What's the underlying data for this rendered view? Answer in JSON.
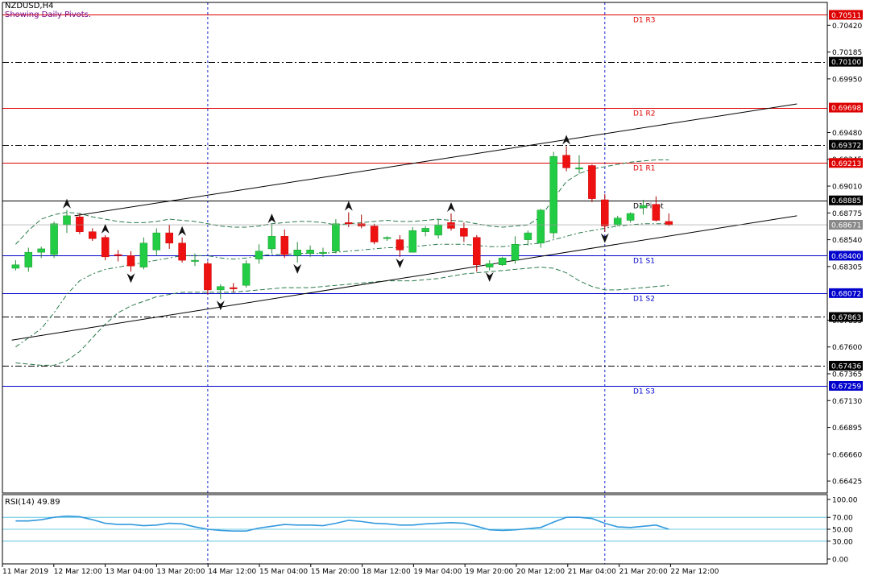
{
  "header": {
    "title": "NZDUSD,H4",
    "subtitle": "Showing Daily Pivots."
  },
  "rsi": {
    "label": "RSI(14) 49.89",
    "value": 49.89,
    "levels": [
      70,
      50,
      30
    ],
    "axis_ticks": [
      "100.00",
      "70.00",
      "50.00",
      "30.00",
      "0.00"
    ]
  },
  "colors": {
    "bull": "#22cc44",
    "bear": "#ee1111",
    "resistance": "#dd0000",
    "support": "#0000cc",
    "pivot": "#000000",
    "dashed_ma": "#2a7a4a",
    "rsi_line": "#3399dd",
    "rsi_level": "#44bbdd"
  },
  "chart_data": {
    "type": "candlestick",
    "symbol": "NZDUSD",
    "timeframe": "H4",
    "ylim": [
      0.6632,
      0.7062
    ],
    "y_ticks": [
      "0.70420",
      "0.70185",
      "0.69950",
      "0.69480",
      "0.69245",
      "0.69010",
      "0.68775",
      "0.68540",
      "0.68305",
      "0.67835",
      "0.67600",
      "0.67365",
      "0.67130",
      "0.66895",
      "0.66660",
      "0.66425"
    ],
    "x_ticks": [
      "11 Mar 2019",
      "12 Mar 12:00",
      "13 Mar 04:00",
      "13 Mar 20:00",
      "14 Mar 12:00",
      "15 Mar 04:00",
      "15 Mar 20:00",
      "18 Mar 12:00",
      "19 Mar 04:00",
      "19 Mar 20:00",
      "20 Mar 12:00",
      "21 Mar 04:00",
      "21 Mar 20:00",
      "22 Mar 12:00"
    ],
    "candles": [
      {
        "o": 0.6829,
        "h": 0.6836,
        "l": 0.6827,
        "c": 0.6832
      },
      {
        "o": 0.683,
        "h": 0.6847,
        "l": 0.6826,
        "c": 0.6843
      },
      {
        "o": 0.6843,
        "h": 0.6848,
        "l": 0.6838,
        "c": 0.6846
      },
      {
        "o": 0.6841,
        "h": 0.687,
        "l": 0.6838,
        "c": 0.6868
      },
      {
        "o": 0.6867,
        "h": 0.688,
        "l": 0.686,
        "c": 0.6875
      },
      {
        "o": 0.6874,
        "h": 0.6877,
        "l": 0.6859,
        "c": 0.6861
      },
      {
        "o": 0.6861,
        "h": 0.6864,
        "l": 0.6853,
        "c": 0.6855
      },
      {
        "o": 0.6856,
        "h": 0.6858,
        "l": 0.6836,
        "c": 0.6839
      },
      {
        "o": 0.6841,
        "h": 0.6845,
        "l": 0.6835,
        "c": 0.684
      },
      {
        "o": 0.684,
        "h": 0.6844,
        "l": 0.6826,
        "c": 0.6831
      },
      {
        "o": 0.683,
        "h": 0.6856,
        "l": 0.6828,
        "c": 0.6851
      },
      {
        "o": 0.6845,
        "h": 0.6864,
        "l": 0.684,
        "c": 0.686
      },
      {
        "o": 0.686,
        "h": 0.6867,
        "l": 0.6846,
        "c": 0.6851
      },
      {
        "o": 0.6851,
        "h": 0.6856,
        "l": 0.6834,
        "c": 0.6836
      },
      {
        "o": 0.6835,
        "h": 0.6842,
        "l": 0.6831,
        "c": 0.6836
      },
      {
        "o": 0.6833,
        "h": 0.6835,
        "l": 0.6806,
        "c": 0.681
      },
      {
        "o": 0.681,
        "h": 0.6815,
        "l": 0.6802,
        "c": 0.6813
      },
      {
        "o": 0.6812,
        "h": 0.6816,
        "l": 0.6808,
        "c": 0.6811
      },
      {
        "o": 0.6814,
        "h": 0.6836,
        "l": 0.6812,
        "c": 0.6833
      },
      {
        "o": 0.6837,
        "h": 0.685,
        "l": 0.6833,
        "c": 0.6844
      },
      {
        "o": 0.6846,
        "h": 0.6867,
        "l": 0.6842,
        "c": 0.6857
      },
      {
        "o": 0.6857,
        "h": 0.6863,
        "l": 0.6838,
        "c": 0.6841
      },
      {
        "o": 0.684,
        "h": 0.6852,
        "l": 0.6834,
        "c": 0.6845
      },
      {
        "o": 0.6842,
        "h": 0.6849,
        "l": 0.6839,
        "c": 0.6845
      },
      {
        "o": 0.6843,
        "h": 0.6847,
        "l": 0.6839,
        "c": 0.6843
      },
      {
        "o": 0.6844,
        "h": 0.6872,
        "l": 0.6842,
        "c": 0.6868
      },
      {
        "o": 0.6869,
        "h": 0.6878,
        "l": 0.6865,
        "c": 0.6868
      },
      {
        "o": 0.6868,
        "h": 0.6876,
        "l": 0.6864,
        "c": 0.6866
      },
      {
        "o": 0.6866,
        "h": 0.6868,
        "l": 0.685,
        "c": 0.6852
      },
      {
        "o": 0.6855,
        "h": 0.6857,
        "l": 0.6853,
        "c": 0.6856
      },
      {
        "o": 0.6854,
        "h": 0.6858,
        "l": 0.6839,
        "c": 0.6845
      },
      {
        "o": 0.6843,
        "h": 0.6865,
        "l": 0.6843,
        "c": 0.6862
      },
      {
        "o": 0.6861,
        "h": 0.6866,
        "l": 0.6857,
        "c": 0.6864
      },
      {
        "o": 0.6858,
        "h": 0.6872,
        "l": 0.6855,
        "c": 0.6867
      },
      {
        "o": 0.6869,
        "h": 0.6877,
        "l": 0.6862,
        "c": 0.6864
      },
      {
        "o": 0.6864,
        "h": 0.6869,
        "l": 0.6852,
        "c": 0.6857
      },
      {
        "o": 0.6856,
        "h": 0.6858,
        "l": 0.6826,
        "c": 0.6832
      },
      {
        "o": 0.683,
        "h": 0.6836,
        "l": 0.6827,
        "c": 0.6833
      },
      {
        "o": 0.6832,
        "h": 0.6839,
        "l": 0.6831,
        "c": 0.6838
      },
      {
        "o": 0.6836,
        "h": 0.6857,
        "l": 0.6833,
        "c": 0.685
      },
      {
        "o": 0.6854,
        "h": 0.6862,
        "l": 0.6849,
        "c": 0.686
      },
      {
        "o": 0.6851,
        "h": 0.6881,
        "l": 0.6847,
        "c": 0.688
      },
      {
        "o": 0.686,
        "h": 0.6931,
        "l": 0.6855,
        "c": 0.6927
      },
      {
        "o": 0.6928,
        "h": 0.6936,
        "l": 0.6914,
        "c": 0.6917
      },
      {
        "o": 0.6917,
        "h": 0.6928,
        "l": 0.6912,
        "c": 0.6917
      },
      {
        "o": 0.6919,
        "h": 0.692,
        "l": 0.6887,
        "c": 0.689
      },
      {
        "o": 0.6889,
        "h": 0.6894,
        "l": 0.6861,
        "c": 0.6866
      },
      {
        "o": 0.6867,
        "h": 0.6875,
        "l": 0.6866,
        "c": 0.6873
      },
      {
        "o": 0.6871,
        "h": 0.6878,
        "l": 0.6869,
        "c": 0.6877
      },
      {
        "o": 0.6882,
        "h": 0.6889,
        "l": 0.6876,
        "c": 0.6884
      },
      {
        "o": 0.6885,
        "h": 0.6892,
        "l": 0.687,
        "c": 0.6871
      },
      {
        "o": 0.687,
        "h": 0.6877,
        "l": 0.6866,
        "c": 0.6867
      }
    ],
    "pivot_levels": [
      {
        "name": "D1 R3",
        "label": "D1 R3",
        "price": 0.70511,
        "tag": "0.70511",
        "kind": "resistance",
        "style": "solid"
      },
      {
        "name": "mid-r3-r2",
        "label": "",
        "price": 0.701,
        "tag": "0.70100",
        "kind": "mid",
        "style": "dashdot"
      },
      {
        "name": "D1 R2",
        "label": "D1 R2",
        "price": 0.69698,
        "tag": "0.69698",
        "kind": "resistance",
        "style": "solid"
      },
      {
        "name": "mid-r2-r1",
        "label": "",
        "price": 0.69372,
        "tag": "0.69372",
        "kind": "mid",
        "style": "dashdot"
      },
      {
        "name": "D1 R1",
        "label": "D1 R1",
        "price": 0.69213,
        "tag": "0.69213",
        "kind": "resistance",
        "style": "solid"
      },
      {
        "name": "D1 Pivot",
        "label": "D1 Pivot",
        "price": 0.68885,
        "tag": "0.68885",
        "kind": "pivot",
        "style": "solid"
      },
      {
        "name": "D1 S1",
        "label": "D1 S1",
        "price": 0.684,
        "tag": "0.68400",
        "kind": "support",
        "style": "solid"
      },
      {
        "name": "D1 S2",
        "label": "D1 S2",
        "price": 0.68072,
        "tag": "0.68072",
        "kind": "support",
        "style": "solid"
      },
      {
        "name": "mid-s2-s3",
        "label": "",
        "price": 0.67863,
        "tag": "0.67863",
        "kind": "mid",
        "style": "dashdot"
      },
      {
        "name": "mid-s3",
        "label": "",
        "price": 0.67436,
        "tag": "0.67436",
        "kind": "mid",
        "style": "dashdot"
      },
      {
        "name": "D1 S3",
        "label": "D1 S3",
        "price": 0.67259,
        "tag": "0.67259",
        "kind": "support",
        "style": "solid"
      }
    ],
    "current_price": {
      "price": 0.68671,
      "tag": "0.68671"
    },
    "period_separators": [
      15,
      46
    ],
    "trendlines": [
      {
        "name": "upper-channel",
        "from": {
          "bar": 4.6,
          "price": 0.6875
        },
        "to": {
          "bar": 61.0,
          "price": 0.6973
        }
      },
      {
        "name": "lower-channel",
        "from": {
          "bar": -0.3,
          "price": 0.6766
        },
        "to": {
          "bar": 61.0,
          "price": 0.6875
        }
      }
    ],
    "fractals": [
      {
        "bar": 4,
        "type": "up"
      },
      {
        "bar": 7,
        "type": "up"
      },
      {
        "bar": 9,
        "type": "down"
      },
      {
        "bar": 13,
        "type": "up"
      },
      {
        "bar": 16,
        "type": "down"
      },
      {
        "bar": 20,
        "type": "up"
      },
      {
        "bar": 22,
        "type": "down"
      },
      {
        "bar": 26,
        "type": "up"
      },
      {
        "bar": 30,
        "type": "down"
      },
      {
        "bar": 34,
        "type": "up"
      },
      {
        "bar": 37,
        "type": "down"
      },
      {
        "bar": 43,
        "type": "up"
      },
      {
        "bar": 46,
        "type": "down"
      }
    ],
    "envelope_upper": [
      0.685,
      0.6862,
      0.6872,
      0.6876,
      0.6878,
      0.6877,
      0.6874,
      0.6872,
      0.687,
      0.6869,
      0.6869,
      0.687,
      0.6872,
      0.6871,
      0.687,
      0.6868,
      0.6866,
      0.6865,
      0.6865,
      0.6866,
      0.6868,
      0.6869,
      0.687,
      0.687,
      0.6869,
      0.6867,
      0.6868,
      0.6869,
      0.687,
      0.6871,
      0.687,
      0.687,
      0.6871,
      0.6872,
      0.6871,
      0.687,
      0.6868,
      0.6866,
      0.6865,
      0.6866,
      0.6867,
      0.6874,
      0.689,
      0.6905,
      0.6912,
      0.6916,
      0.6918,
      0.692,
      0.6922,
      0.6923,
      0.6924,
      0.6924
    ],
    "envelope_mid": [
      0.676,
      0.6768,
      0.6776,
      0.679,
      0.6806,
      0.6818,
      0.6824,
      0.6828,
      0.683,
      0.6832,
      0.6834,
      0.6836,
      0.6838,
      0.684,
      0.684,
      0.684,
      0.6838,
      0.6837,
      0.6838,
      0.684,
      0.6841,
      0.6841,
      0.6842,
      0.6842,
      0.6842,
      0.6843,
      0.6844,
      0.6845,
      0.6846,
      0.6847,
      0.6847,
      0.6848,
      0.6849,
      0.685,
      0.685,
      0.685,
      0.6849,
      0.6848,
      0.6848,
      0.6849,
      0.685,
      0.6851,
      0.6854,
      0.6857,
      0.686,
      0.6862,
      0.6864,
      0.6866,
      0.6867,
      0.6868,
      0.6868,
      0.6868
    ],
    "envelope_lower": [
      0.6746,
      0.6745,
      0.6744,
      0.6744,
      0.6748,
      0.6756,
      0.6768,
      0.678,
      0.679,
      0.6796,
      0.68,
      0.6804,
      0.6806,
      0.6808,
      0.6808,
      0.6808,
      0.6808,
      0.6808,
      0.6809,
      0.681,
      0.6811,
      0.6812,
      0.6812,
      0.6812,
      0.6813,
      0.6814,
      0.6815,
      0.6816,
      0.6817,
      0.6818,
      0.6818,
      0.6818,
      0.6819,
      0.682,
      0.6822,
      0.6824,
      0.6825,
      0.6826,
      0.6827,
      0.6828,
      0.6829,
      0.683,
      0.6829,
      0.6825,
      0.6818,
      0.6813,
      0.681,
      0.681,
      0.6811,
      0.6812,
      0.6813,
      0.6814
    ],
    "rsi_values": [
      64,
      64,
      66,
      70,
      72,
      71,
      66,
      60,
      58,
      58,
      56,
      57,
      60,
      59,
      54,
      50,
      48,
      47,
      47,
      52,
      55,
      58,
      57,
      57,
      56,
      60,
      65,
      63,
      60,
      59,
      57,
      57,
      59,
      60,
      61,
      60,
      55,
      49,
      48,
      49,
      51,
      53,
      62,
      70,
      70,
      68,
      60,
      54,
      53,
      55,
      57,
      50
    ]
  }
}
